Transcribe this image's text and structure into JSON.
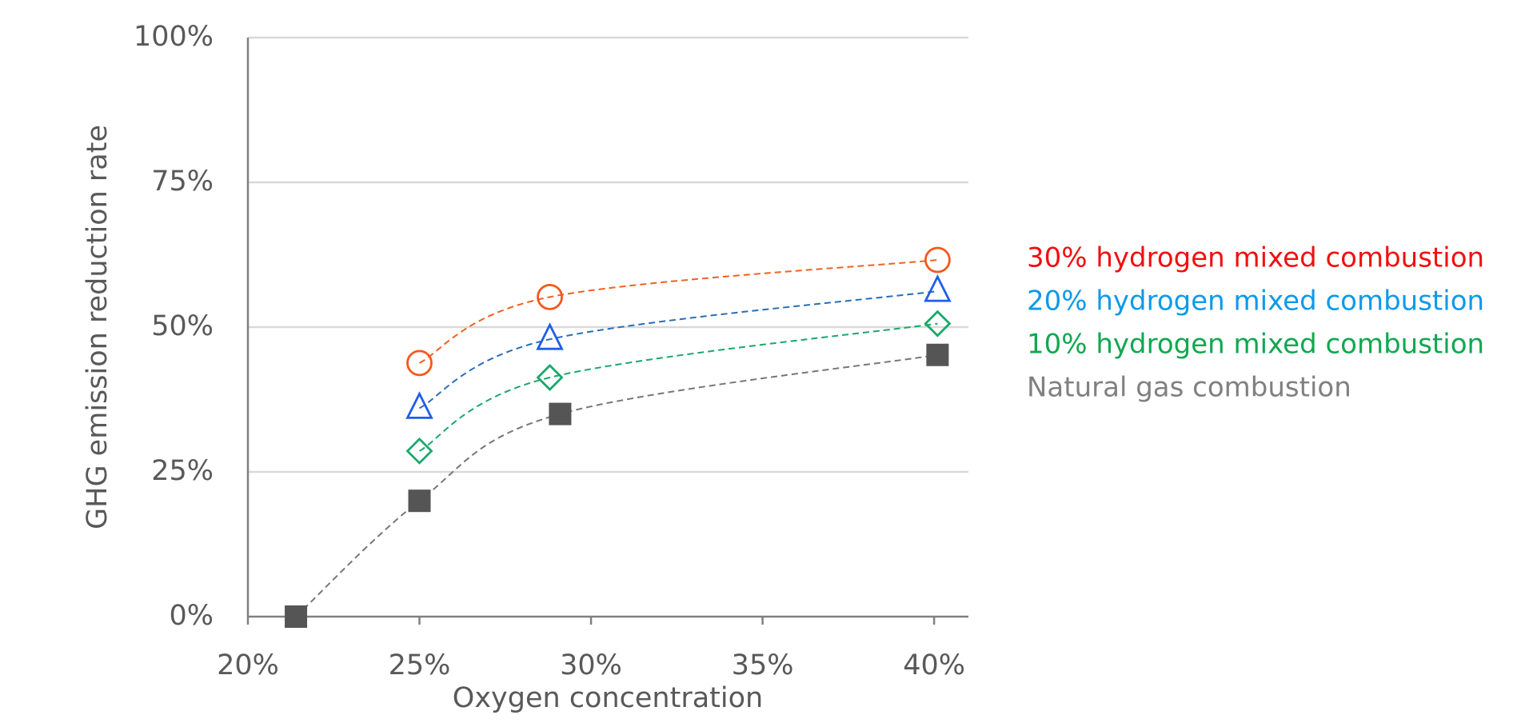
{
  "chart_data": {
    "type": "scatter",
    "x_label": "Oxygen concentration",
    "y_label": "GHG emission reduction rate",
    "xlim": [
      20,
      41
    ],
    "ylim": [
      0,
      100
    ],
    "xticks": [
      {
        "value": 20,
        "label": "20%"
      },
      {
        "value": 25,
        "label": "25%"
      },
      {
        "value": 30,
        "label": "30%"
      },
      {
        "value": 35,
        "label": "35%"
      },
      {
        "value": 40,
        "label": "40%"
      }
    ],
    "yticks": [
      {
        "value": 0,
        "label": "0%"
      },
      {
        "value": 25,
        "label": "25%"
      },
      {
        "value": 50,
        "label": "50%"
      },
      {
        "value": 75,
        "label": "75%"
      },
      {
        "value": 100,
        "label": "100%"
      }
    ],
    "grid": true,
    "series": [
      {
        "name": "30% hydrogen mixed combustion",
        "marker": "circle",
        "color": "#f4581c",
        "line_color": "#f06020",
        "label_color": "#f01010",
        "x": [
          25,
          28.8,
          40.1
        ],
        "values": [
          43.8,
          55.2,
          61.6
        ]
      },
      {
        "name": "20% hydrogen mixed combustion",
        "marker": "triangle",
        "color": "#1f5ee8",
        "line_color": "#2a6db5",
        "label_color": "#0e9ae8",
        "x": [
          25,
          28.8,
          40.1
        ],
        "values": [
          36.0,
          47.9,
          56.2
        ]
      },
      {
        "name": "10% hydrogen mixed combustion",
        "marker": "diamond",
        "color": "#1aa86a",
        "line_color": "#1aa86a",
        "label_color": "#10a850",
        "x": [
          25,
          28.8,
          40.1
        ],
        "values": [
          28.6,
          41.3,
          50.6
        ]
      },
      {
        "name": "Natural gas combustion",
        "marker": "square",
        "color": "#555555",
        "line_color": "#777777",
        "label_color": "#808080",
        "x": [
          21.4,
          25,
          29.1,
          40.1
        ],
        "values": [
          0,
          20,
          35.0,
          45.2
        ]
      }
    ]
  }
}
